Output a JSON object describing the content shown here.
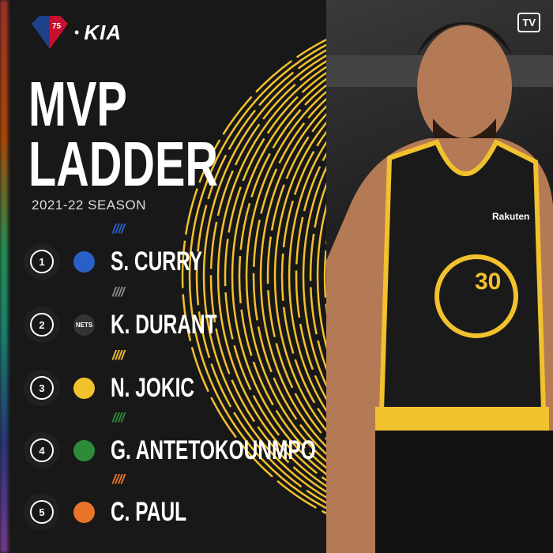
{
  "header": {
    "brand": "KIA",
    "title_line1": "MVP",
    "title_line2": "LADDER",
    "season": "2021-22 SEASON",
    "nba_logo_text": "75",
    "tv_badge": "TV"
  },
  "ladder": [
    {
      "rank": "1",
      "name": "S. CURRY",
      "team_logo": "warriors-logo",
      "accent": "#2a5fc8"
    },
    {
      "rank": "2",
      "name": "K. DURANT",
      "team_logo": "nets-logo",
      "team_text": "NETS",
      "accent": "#8a8a8a"
    },
    {
      "rank": "3",
      "name": "N. JOKIC",
      "team_logo": "nuggets-logo",
      "accent": "#f2c12e"
    },
    {
      "rank": "4",
      "name": "G. ANTETOKOUNMPO",
      "team_logo": "bucks-logo",
      "accent": "#2e8b3a"
    },
    {
      "rank": "5",
      "name": "C. PAUL",
      "team_logo": "suns-logo",
      "accent": "#e8742a"
    }
  ],
  "photo": {
    "jersey_number": "30",
    "sponsor": "Rakuten"
  }
}
